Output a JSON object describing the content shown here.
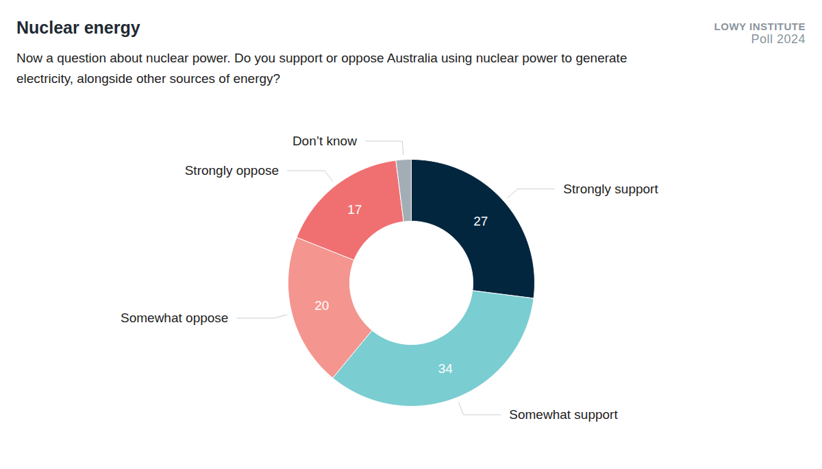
{
  "chart_data": {
    "type": "donut",
    "title": "Nuclear energy",
    "subtitle": "Now a question about nuclear power. Do you support or oppose Australia using nuclear power to generate electricity, alongside other sources of energy?",
    "annotations": [
      "LOWY INSTITUTE",
      "Poll 2024"
    ],
    "categories": [
      "Strongly support",
      "Somewhat support",
      "Somewhat oppose",
      "Strongly oppose",
      "Don’t know"
    ],
    "values": [
      27,
      34,
      20,
      17,
      2
    ],
    "value_labels": [
      "27",
      "34",
      "20",
      "17",
      null
    ],
    "colors": [
      "#03263f",
      "#7acdd1",
      "#f4958f",
      "#f07072",
      "#a3adb5"
    ],
    "data_labels": true,
    "tick_labels": false
  }
}
